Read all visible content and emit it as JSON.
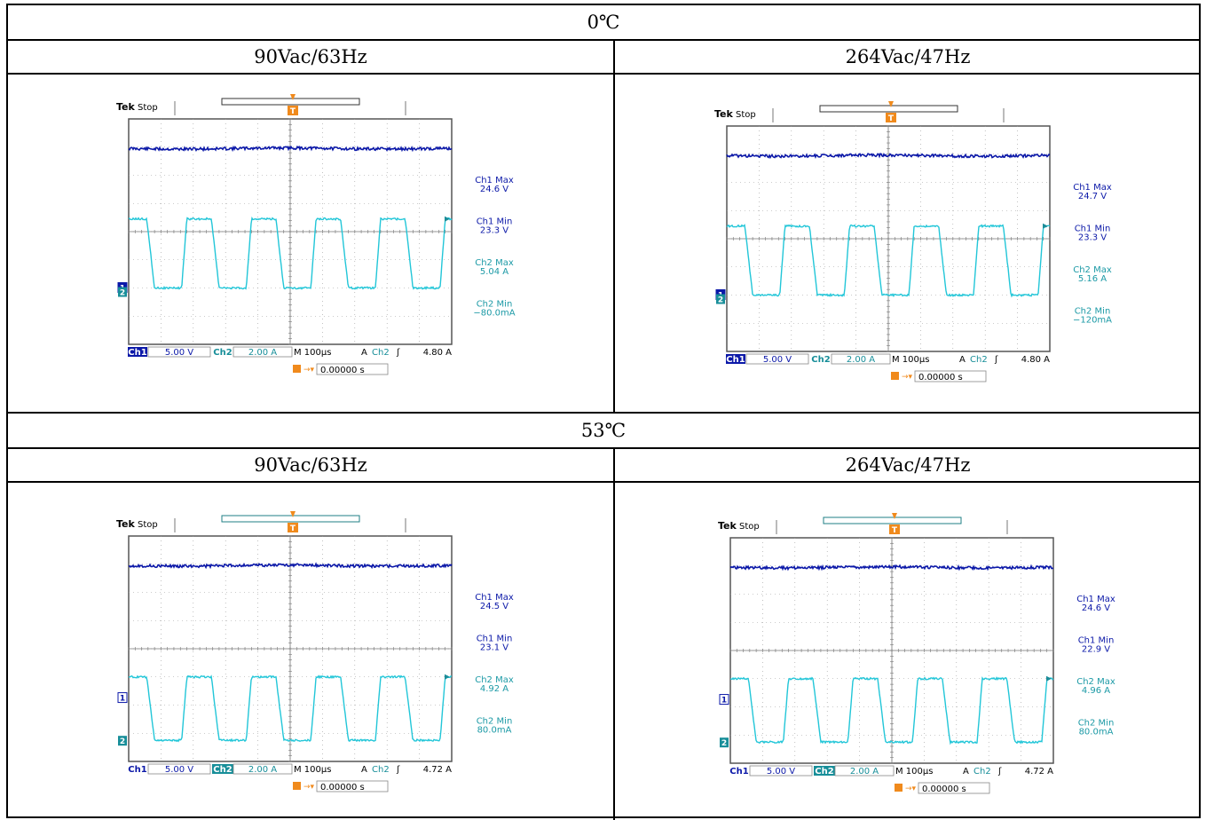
{
  "table": {
    "sections": [
      {
        "temperature": "0℃",
        "columns": [
          {
            "condition": "90Vac/63Hz"
          },
          {
            "condition": "264Vac/47Hz"
          }
        ]
      },
      {
        "temperature": "53℃",
        "columns": [
          {
            "condition": "90Vac/63Hz"
          },
          {
            "condition": "264Vac/47Hz"
          }
        ]
      }
    ]
  },
  "scope_ui": {
    "brand": "Tek",
    "state": "Stop",
    "ch1_label": "Ch1",
    "ch2_label": "Ch2",
    "ch1_scale": "5.00 V",
    "ch2_scale": "2.00 A",
    "timebase": "M 100µs",
    "trigger_mode": "A",
    "trigger_source": "Ch2",
    "trigger_slope": "ʃ",
    "trigger_position": "0.00000 s",
    "trigger_marker": "T",
    "ch1_marker": "1",
    "ch2_marker": "2",
    "colors": {
      "ch1": "#0b18a8",
      "ch2": "#22c6d8",
      "trigger": "#f08a1c",
      "grid": "#9a9a9a",
      "border": "#666666"
    }
  },
  "chart_data": [
    {
      "type": "line",
      "section": "0℃",
      "condition": "90Vac/63Hz",
      "trigger_level": "4.80 A",
      "measurements": [
        {
          "label": "Ch1 Max",
          "value": "24.6 V",
          "channel": "ch1"
        },
        {
          "label": "Ch1 Min",
          "value": "23.3 V",
          "channel": "ch1"
        },
        {
          "label": "Ch2 Max",
          "value": "5.04 A",
          "channel": "ch2"
        },
        {
          "label": "Ch2 Min",
          "value": "−80.0mA",
          "channel": "ch2"
        }
      ],
      "ch1_level_div": 2.95,
      "ch2_high_div": 0.45,
      "ch2_low_div": -2.0,
      "ch1_marker_div": -2.0,
      "cycles": 5
    },
    {
      "type": "line",
      "section": "0℃",
      "condition": "264Vac/47Hz",
      "trigger_level": "4.80 A",
      "measurements": [
        {
          "label": "Ch1 Max",
          "value": "24.7 V",
          "channel": "ch1"
        },
        {
          "label": "Ch1 Min",
          "value": "23.3 V",
          "channel": "ch1"
        },
        {
          "label": "Ch2 Max",
          "value": "5.16 A",
          "channel": "ch2"
        },
        {
          "label": "Ch2 Min",
          "value": "−120mA",
          "channel": "ch2"
        }
      ],
      "ch1_level_div": 2.95,
      "ch2_high_div": 0.45,
      "ch2_low_div": -2.0,
      "ch1_marker_div": -2.0,
      "cycles": 5
    },
    {
      "type": "line",
      "section": "53℃",
      "condition": "90Vac/63Hz",
      "trigger_level": "4.72 A",
      "measurements": [
        {
          "label": "Ch1 Max",
          "value": "24.5 V",
          "channel": "ch1"
        },
        {
          "label": "Ch1 Min",
          "value": "23.1 V",
          "channel": "ch1"
        },
        {
          "label": "Ch2 Max",
          "value": "4.92 A",
          "channel": "ch2"
        },
        {
          "label": "Ch2 Min",
          "value": "80.0mA",
          "channel": "ch2"
        }
      ],
      "ch1_level_div": 2.95,
      "ch2_high_div": -1.0,
      "ch2_low_div": -3.25,
      "ch1_marker_div": -1.75,
      "cycles": 5
    },
    {
      "type": "line",
      "section": "53℃",
      "condition": "264Vac/47Hz",
      "trigger_level": "4.72 A",
      "measurements": [
        {
          "label": "Ch1 Max",
          "value": "24.6 V",
          "channel": "ch1"
        },
        {
          "label": "Ch1 Min",
          "value": "22.9 V",
          "channel": "ch1"
        },
        {
          "label": "Ch2 Max",
          "value": "4.96 A",
          "channel": "ch2"
        },
        {
          "label": "Ch2 Min",
          "value": "80.0mA",
          "channel": "ch2"
        }
      ],
      "ch1_level_div": 2.95,
      "ch2_high_div": -1.0,
      "ch2_low_div": -3.25,
      "ch1_marker_div": -1.75,
      "cycles": 5
    }
  ]
}
